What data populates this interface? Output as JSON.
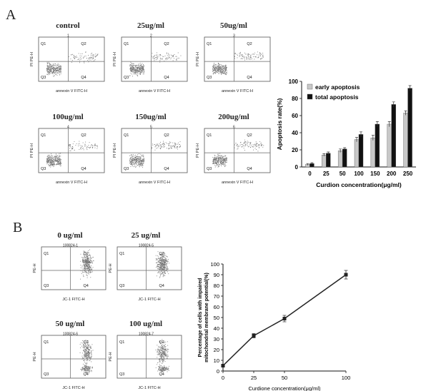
{
  "panels": {
    "a": {
      "letter": "A",
      "flow_plots": [
        {
          "title": "control",
          "id": "1"
        },
        {
          "title": "25ug/ml",
          "id": "2"
        },
        {
          "title": "50ug/ml",
          "id": "3"
        },
        {
          "title": "100ug/ml",
          "id": "4"
        },
        {
          "title": "150ug/ml",
          "id": "5"
        },
        {
          "title": "200ug/ml",
          "id": "6"
        }
      ],
      "flow_axis": {
        "y": "PI PE-H",
        "x": "annexin V FITC-H"
      },
      "quadrants": [
        "Q1",
        "Q2",
        "Q3",
        "Q4"
      ]
    },
    "b": {
      "letter": "B",
      "flow_plots": [
        {
          "title": "0 ug/ml",
          "id": "100824-1"
        },
        {
          "title": "25 ug/ml",
          "id": "100824-5"
        },
        {
          "title": "50 ug/ml",
          "id": "100824-6"
        },
        {
          "title": "100 ug/ml",
          "id": "100824-7"
        }
      ],
      "flow_axis": {
        "y": "PE-H",
        "x": "JC-1 FITC-H"
      },
      "quadrants": [
        "Q1",
        "Q2",
        "Q3",
        "Q4"
      ]
    }
  },
  "chart_data": [
    {
      "type": "bar",
      "title": "",
      "xlabel": "Curdion concentration(μg/ml)",
      "ylabel": "Apoptosis rate(%)",
      "categories": [
        "0",
        "25",
        "50",
        "100",
        "150",
        "200",
        "250"
      ],
      "ylim": [
        0,
        100
      ],
      "yticks": [
        0,
        20,
        40,
        60,
        80,
        100
      ],
      "legend_position": "top-left",
      "series": [
        {
          "name": "early apoptosis",
          "color": "#c8c8c8",
          "values": [
            3,
            14,
            19,
            32,
            34,
            50,
            63
          ],
          "errors": [
            1,
            1.5,
            2,
            2.5,
            3,
            3,
            2.5
          ]
        },
        {
          "name": "total apoptosis",
          "color": "#111111",
          "values": [
            4,
            16,
            21,
            38,
            50,
            73,
            92
          ],
          "errors": [
            1,
            1.5,
            1.5,
            3,
            3,
            3,
            3
          ]
        }
      ]
    },
    {
      "type": "line",
      "title": "",
      "xlabel": "Curdione concentration(μg/ml)",
      "ylabel": "Percentage of cells with impaired mitochondrial membrane potential(%)",
      "x": [
        0,
        25,
        50,
        100
      ],
      "xticks": [
        "0",
        "25",
        "50",
        "100"
      ],
      "ylim": [
        0,
        100
      ],
      "yticks": [
        0,
        10,
        20,
        30,
        40,
        50,
        60,
        70,
        80,
        90,
        100
      ],
      "series": [
        {
          "values": [
            5,
            33,
            49,
            90
          ],
          "errors": [
            1,
            2,
            3,
            4
          ]
        }
      ]
    }
  ]
}
